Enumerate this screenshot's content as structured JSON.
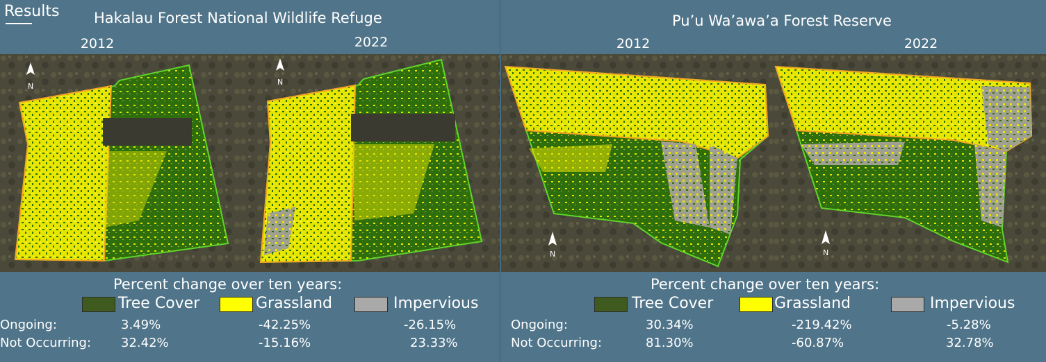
{
  "heading": "Results",
  "colors": {
    "background": "#507489",
    "tree_cover": "#3f5a1f",
    "grassland": "#ffff00",
    "impervious": "#a9a9a9",
    "forest_map": "#2f6e0c",
    "boundary": "#f5a623"
  },
  "left": {
    "title": "Hakalau Forest National Wildlife Refuge",
    "year_a": "2012",
    "year_b": "2022",
    "north_label": "N",
    "legend": {
      "title": "Percent change over ten years:",
      "tree_cover": "Tree Cover",
      "grassland": "Grassland",
      "impervious": "Impervious"
    },
    "rows": [
      {
        "label": "Ongoing:",
        "tree": "3.49%",
        "grass": "-42.25%",
        "imperv": "-26.15%"
      },
      {
        "label": "Not Occurring:",
        "tree": "32.42%",
        "grass": "-15.16%",
        "imperv": "23.33%"
      }
    ]
  },
  "right": {
    "title": "Pu’u Wa’awa’a Forest Reserve",
    "year_a": "2012",
    "year_b": "2022",
    "north_label": "N",
    "legend": {
      "title": "Percent change over ten years:",
      "tree_cover": "Tree Cover",
      "grassland": "Grassland",
      "impervious": "Impervious"
    },
    "rows": [
      {
        "label": "Ongoing:",
        "tree": "30.34%",
        "grass": "-219.42%",
        "imperv": "-5.28%"
      },
      {
        "label": "Not Occurring:",
        "tree": "81.30%",
        "grass": "-60.87%",
        "imperv": "32.78%"
      }
    ]
  }
}
